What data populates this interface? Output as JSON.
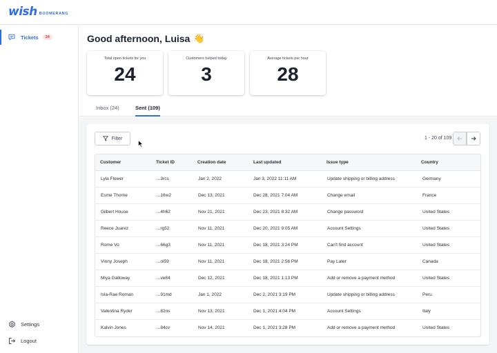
{
  "app": {
    "logo_main": "wish",
    "logo_sub": "BOOMERANG"
  },
  "sidebar": {
    "items": [
      {
        "label": "Tickets",
        "badge": "24",
        "icon": "chat-icon",
        "active": true
      },
      {
        "label": "Settings",
        "icon": "gear-icon"
      },
      {
        "label": "Logout",
        "icon": "logout-icon"
      }
    ]
  },
  "header": {
    "greeting": "Good afternoon, Luisa",
    "emoji": "👋"
  },
  "stats": [
    {
      "label": "Total open tickets for you",
      "value": "24"
    },
    {
      "label": "Customers helped today",
      "value": "3"
    },
    {
      "label": "Average tickets per hour",
      "value": "28"
    }
  ],
  "tabs": [
    {
      "label": "Inbox (24)"
    },
    {
      "label": "Sent (109)",
      "active": true
    }
  ],
  "toolbar": {
    "filter_label": "Filter"
  },
  "pagination": {
    "range": "1 - 20 of 109"
  },
  "table": {
    "columns": [
      "Customer",
      "Ticket ID",
      "Creation date",
      "Last updated",
      "Issue type",
      "Country"
    ],
    "rows": [
      [
        "Lyla Flower",
        "...3rcs",
        "Jan 2, 2022",
        "Jan 3, 2022  11:11 AM",
        "Update shipping or billing address",
        "Germany"
      ],
      [
        "Esme Thorne",
        "...16w2",
        "Dec 13, 2021",
        "Dec 28, 2021  7:04 AM",
        "Change email",
        "France"
      ],
      [
        "Gilbert House",
        "...4h62",
        "Nov 21, 2021",
        "Dec 23, 2021  8:32 AM",
        "Change password",
        "United States"
      ],
      [
        "Reece Juarez",
        "...rg52",
        "Nov 11, 2021",
        "Dec 20, 2021  9:05 AM",
        "Account Settings",
        "United States"
      ],
      [
        "Rome Vo",
        "...66g3",
        "Nov 11, 2021",
        "Dec 18, 2021  3:24 PM",
        "Can't find account",
        "United States"
      ],
      [
        "Vinny Joseph",
        "...ol59",
        "Nov 11, 2021",
        "Dec 18, 2021  2:56 PM",
        "Pay Later",
        "Canada"
      ],
      [
        "Miya Galloway",
        "...ve84",
        "Dec 12, 2021",
        "Dec 18, 2021  1:13 PM",
        "Add or remove a payment method",
        "United States"
      ],
      [
        "Isla-Rae Roman",
        "...91md",
        "Jan 1, 2022",
        "Dec 2, 2021  3:19 PM",
        "Update shipping or billing address",
        "Peru"
      ],
      [
        "Valentina Ryder",
        "...82ns",
        "Nov 13, 2021",
        "Dec 1, 2021  4:04 PM",
        "Account Settings",
        "Italy"
      ],
      [
        "Kalvin Jones",
        "...84cv",
        "Nov 14, 2021",
        "Dec 1, 2021  3:28 PM",
        "Add or remove a payment method",
        "United States"
      ]
    ]
  },
  "colors": {
    "accent": "#2f6ee0",
    "badge_bg": "#fde3e3",
    "badge_text": "#d43b3b"
  }
}
